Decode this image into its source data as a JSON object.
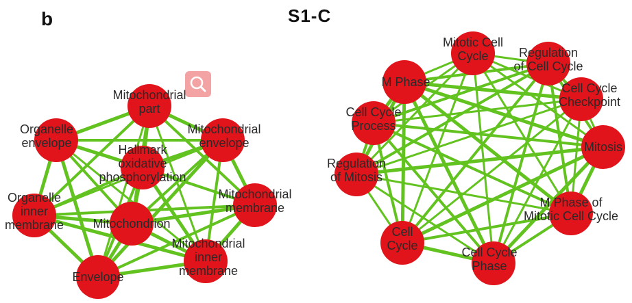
{
  "header": {
    "panel_letter": "b",
    "figure_label": "S1-C"
  },
  "search_icon": "search-icon",
  "colors": {
    "node": "#e0141a",
    "edge": "#62c21f",
    "search_button": "#f3a3a3"
  },
  "left_network": {
    "nodes": [
      {
        "id": "mito-part",
        "label_lines": [
          "Mitochondrial",
          "part"
        ]
      },
      {
        "id": "organelle-envelope",
        "label_lines": [
          "Organelle",
          "envelope"
        ]
      },
      {
        "id": "hallmark-oxphos",
        "label_lines": [
          "Hallmark",
          "oxidative",
          "phosphorylation"
        ]
      },
      {
        "id": "mito-envelope",
        "label_lines": [
          "Mitochondrial",
          "envelope"
        ]
      },
      {
        "id": "organelle-inner-membrane",
        "label_lines": [
          "Organelle",
          "inner",
          "membrane"
        ]
      },
      {
        "id": "mitochondrion",
        "label_lines": [
          "Mitochondrion"
        ]
      },
      {
        "id": "mito-membrane",
        "label_lines": [
          "Mitochondrial",
          "membrane"
        ]
      },
      {
        "id": "mito-inner-membrane",
        "label_lines": [
          "Mitochondrial",
          "inner",
          "membrane"
        ]
      },
      {
        "id": "envelope",
        "label_lines": [
          "Envelope"
        ]
      }
    ]
  },
  "right_network": {
    "nodes": [
      {
        "id": "mitotic-cell-cycle",
        "label_lines": [
          "Mitotic Cell",
          "Cycle"
        ]
      },
      {
        "id": "regulation-of-cell-cycle",
        "label_lines": [
          "Regulation",
          "of Cell Cycle"
        ]
      },
      {
        "id": "m-phase",
        "label_lines": [
          "M Phase"
        ]
      },
      {
        "id": "cell-cycle-checkpoint",
        "label_lines": [
          "Cell Cycle",
          "Checkpoint"
        ]
      },
      {
        "id": "cell-cycle-process",
        "label_lines": [
          "Cell Cycle",
          "Process"
        ]
      },
      {
        "id": "mitosis",
        "label_lines": [
          "Mitosis"
        ]
      },
      {
        "id": "regulation-of-mitosis",
        "label_lines": [
          "Regulation",
          "of Mitosis"
        ]
      },
      {
        "id": "m-phase-of-mitotic-cell-cycle",
        "label_lines": [
          "M Phase of",
          "Mitotic Cell Cycle"
        ]
      },
      {
        "id": "cell-cycle",
        "label_lines": [
          "Cell",
          "Cycle"
        ]
      },
      {
        "id": "cell-cycle-phase",
        "label_lines": [
          "Cell Cycle",
          "Phase"
        ]
      }
    ]
  }
}
